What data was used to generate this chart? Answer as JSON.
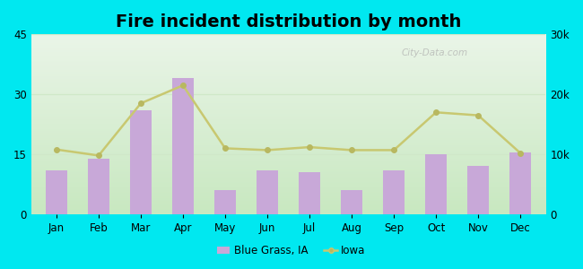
{
  "title": "Fire incident distribution by month",
  "months": [
    "Jan",
    "Feb",
    "Mar",
    "Apr",
    "May",
    "Jun",
    "Jul",
    "Aug",
    "Sep",
    "Oct",
    "Nov",
    "Dec"
  ],
  "blue_grass_values": [
    11,
    14,
    26,
    34,
    6,
    11,
    10.5,
    6,
    11,
    15,
    12,
    15.5
  ],
  "iowa_values": [
    10800,
    9800,
    18500,
    21500,
    11000,
    10700,
    11200,
    10700,
    10700,
    17000,
    16500,
    10200
  ],
  "bar_color": "#c8a8d8",
  "line_color": "#c8c870",
  "marker_color": "#b8b860",
  "background_outer": "#00e8f0",
  "background_grad_top": "#eaf5e8",
  "background_grad_bottom": "#c8e8c0",
  "left_ylim": [
    0,
    45
  ],
  "left_yticks": [
    0,
    15,
    30,
    45
  ],
  "right_ylim": [
    0,
    30000
  ],
  "right_yticks": [
    0,
    10000,
    20000,
    30000
  ],
  "right_yticklabels": [
    "0",
    "10k",
    "20k",
    "30k"
  ],
  "legend_label_bar": "Blue Grass, IA",
  "legend_label_line": "Iowa",
  "watermark": "City-Data.com",
  "grid_color": "#d0e8c8",
  "title_fontsize": 14,
  "tick_fontsize": 8.5
}
